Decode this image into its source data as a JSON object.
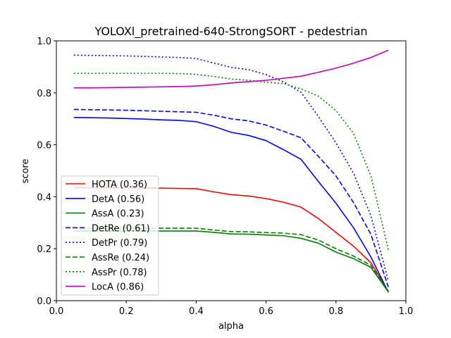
{
  "chart_data": {
    "type": "line",
    "title": "YOLOXl_pretrained-640-StrongSORT - pedestrian",
    "xlabel": "alpha",
    "ylabel": "score",
    "xlim": [
      0.0,
      1.0
    ],
    "ylim": [
      0.0,
      1.0
    ],
    "xticks": [
      "0.0",
      "0.2",
      "0.4",
      "0.6",
      "0.8",
      "1.0"
    ],
    "yticks": [
      "0.0",
      "0.2",
      "0.4",
      "0.6",
      "0.8",
      "1.0"
    ],
    "grid": false,
    "legend_position": "lower-left",
    "x": [
      0.05,
      0.1,
      0.15,
      0.2,
      0.25,
      0.3,
      0.35,
      0.4,
      0.45,
      0.5,
      0.55,
      0.6,
      0.65,
      0.7,
      0.75,
      0.8,
      0.85,
      0.9,
      0.95
    ],
    "series": [
      {
        "name": "HOTA (0.36)",
        "color": "#ff0000",
        "style": "solid",
        "values": [
          0.435,
          0.435,
          0.435,
          0.434,
          0.434,
          0.433,
          0.432,
          0.431,
          0.419,
          0.408,
          0.403,
          0.393,
          0.379,
          0.36,
          0.316,
          0.263,
          0.21,
          0.146,
          0.035
        ]
      },
      {
        "name": "DetA (0.56)",
        "color": "#0000ff",
        "style": "solid",
        "values": [
          0.705,
          0.704,
          0.703,
          0.701,
          0.699,
          0.696,
          0.694,
          0.689,
          0.671,
          0.648,
          0.636,
          0.616,
          0.581,
          0.544,
          0.458,
          0.375,
          0.281,
          0.168,
          0.032
        ]
      },
      {
        "name": "AssA (0.23)",
        "color": "#008000",
        "style": "solid",
        "values": [
          0.268,
          0.268,
          0.268,
          0.268,
          0.268,
          0.268,
          0.268,
          0.268,
          0.263,
          0.257,
          0.256,
          0.253,
          0.25,
          0.24,
          0.221,
          0.187,
          0.162,
          0.128,
          0.033
        ]
      },
      {
        "name": "DetRe (0.61)",
        "color": "#0000ff",
        "style": "dashed",
        "values": [
          0.736,
          0.735,
          0.734,
          0.733,
          0.731,
          0.729,
          0.727,
          0.725,
          0.714,
          0.7,
          0.692,
          0.676,
          0.652,
          0.627,
          0.555,
          0.48,
          0.378,
          0.255,
          0.052
        ]
      },
      {
        "name": "DetPr (0.79)",
        "color": "#0000ff",
        "style": "dotted",
        "values": [
          0.945,
          0.944,
          0.943,
          0.942,
          0.94,
          0.938,
          0.936,
          0.932,
          0.915,
          0.898,
          0.889,
          0.87,
          0.842,
          0.802,
          0.708,
          0.607,
          0.491,
          0.326,
          0.076
        ]
      },
      {
        "name": "AssRe (0.24)",
        "color": "#008000",
        "style": "dashed",
        "values": [
          0.28,
          0.279,
          0.279,
          0.279,
          0.279,
          0.279,
          0.279,
          0.279,
          0.272,
          0.266,
          0.265,
          0.262,
          0.26,
          0.254,
          0.233,
          0.2,
          0.172,
          0.136,
          0.036
        ]
      },
      {
        "name": "AssPr (0.78)",
        "color": "#008000",
        "style": "dotted",
        "values": [
          0.875,
          0.875,
          0.875,
          0.875,
          0.875,
          0.875,
          0.874,
          0.871,
          0.863,
          0.853,
          0.848,
          0.841,
          0.836,
          0.815,
          0.787,
          0.732,
          0.644,
          0.48,
          0.195
        ]
      },
      {
        "name": "LocA (0.86)",
        "color": "#bf00bf",
        "style": "solid",
        "values": [
          0.819,
          0.819,
          0.82,
          0.821,
          0.822,
          0.823,
          0.824,
          0.826,
          0.831,
          0.838,
          0.843,
          0.848,
          0.856,
          0.864,
          0.879,
          0.895,
          0.914,
          0.936,
          0.964
        ]
      }
    ]
  }
}
